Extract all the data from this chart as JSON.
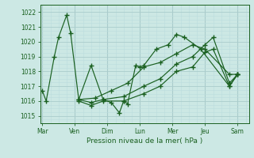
{
  "title": "",
  "xlabel": "Pression niveau de la mer( hPa )",
  "bg_color": "#cce8e4",
  "grid_color_major": "#aacccc",
  "grid_color_minor": "#bbdddd",
  "line_color": "#1a6020",
  "ylim": [
    1014.5,
    1022.5
  ],
  "yticks": [
    1015,
    1016,
    1017,
    1018,
    1019,
    1020,
    1021,
    1022
  ],
  "day_labels": [
    "Mar",
    "Ven",
    "Dim",
    "Lun",
    "Mer",
    "Jeu",
    "Sam"
  ],
  "day_positions": [
    0,
    1,
    2,
    3,
    4,
    5,
    6
  ],
  "xlim": [
    -0.05,
    6.35
  ],
  "series": [
    {
      "x": [
        0.0,
        0.12,
        0.37,
        0.5,
        0.75,
        0.87,
        1.12,
        1.5,
        1.87,
        2.12,
        2.37,
        2.5,
        2.62,
        2.87,
        3.0,
        3.12,
        3.5,
        3.87,
        4.12,
        4.37,
        4.87,
        5.75,
        6.0
      ],
      "y": [
        1016.7,
        1016.0,
        1019.0,
        1020.3,
        1021.8,
        1020.6,
        1016.1,
        1018.4,
        1016.1,
        1015.9,
        1015.2,
        1016.0,
        1015.8,
        1018.4,
        1018.3,
        1018.4,
        1019.5,
        1019.8,
        1020.5,
        1020.3,
        1019.5,
        1017.0,
        1017.8
      ]
    },
    {
      "x": [
        1.12,
        1.5,
        1.87,
        2.5,
        3.12,
        3.62,
        4.12,
        4.62,
        5.0,
        5.25,
        5.75,
        6.0
      ],
      "y": [
        1016.0,
        1015.7,
        1016.0,
        1016.0,
        1016.5,
        1017.0,
        1018.0,
        1018.3,
        1019.3,
        1019.5,
        1017.0,
        1017.8
      ]
    },
    {
      "x": [
        1.12,
        1.5,
        1.87,
        2.5,
        3.12,
        3.62,
        4.12,
        4.62,
        5.0,
        5.25,
        5.75,
        6.0
      ],
      "y": [
        1016.1,
        1015.9,
        1016.1,
        1016.3,
        1017.0,
        1017.5,
        1018.5,
        1019.0,
        1019.8,
        1020.3,
        1017.2,
        1017.8
      ]
    },
    {
      "x": [
        1.12,
        1.62,
        2.12,
        2.62,
        3.12,
        3.62,
        4.12,
        4.62,
        5.0,
        5.75,
        6.0
      ],
      "y": [
        1016.1,
        1016.2,
        1016.7,
        1017.2,
        1018.3,
        1018.6,
        1019.2,
        1019.8,
        1019.5,
        1017.8,
        1017.8
      ]
    }
  ]
}
